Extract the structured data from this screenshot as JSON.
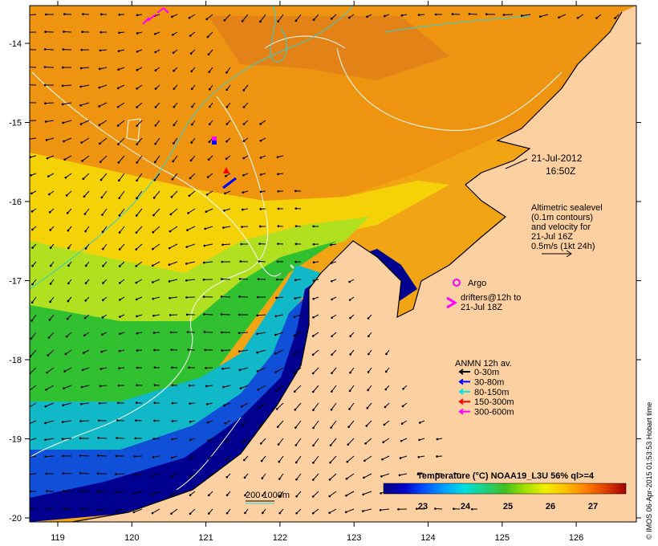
{
  "map": {
    "date_line1": "21-Jul-2012",
    "date_line2": "16:50Z",
    "altimetry": [
      "Altimetric sealevel",
      "(0.1m contours)",
      "and velocity for",
      "21-Jul 16Z",
      "0.5m/s (1kt 24h)"
    ],
    "argo_label": "Argo",
    "drifter_label_1": "drifters@12h to",
    "drifter_label_2": "21-Jul 18Z",
    "anmn": {
      "title": "ANMN 12h av.",
      "items": [
        {
          "label": "0-30m",
          "color": "#000000"
        },
        {
          "label": "30-80m",
          "color": "#0000ff"
        },
        {
          "label": "80-150m",
          "color": "#00e5e5"
        },
        {
          "label": "150-300m",
          "color": "#ff0000"
        },
        {
          "label": "300-600m",
          "color": "#ff00ff"
        }
      ]
    },
    "scale_label": "200  1000m",
    "colorbar": {
      "title": "Temperature (°C) NOAA19_L3U 56% ql>=4",
      "ticks": [
        "23",
        "24",
        "25",
        "26",
        "27"
      ],
      "colors": [
        "#000080",
        "#0000c8",
        "#0050ff",
        "#00a0ff",
        "#00e0e0",
        "#20d080",
        "#40c020",
        "#a0e000",
        "#f0f000",
        "#ffc000",
        "#ff8000",
        "#e04000",
        "#a00000"
      ]
    },
    "credit": "© IMOS 06-Apr-2015 01:53:53 Hobart time",
    "x_ticks": [
      "119",
      "120",
      "121",
      "122",
      "123",
      "124",
      "125",
      "126"
    ],
    "y_ticks": [
      "-14",
      "-15",
      "-16",
      "-17",
      "-18",
      "-19",
      "-20"
    ],
    "colors": {
      "land": "#fdd0a2",
      "warm": "#f29a12",
      "mid": "#f5d000",
      "cool": "#40c830",
      "cold": "#000090"
    }
  }
}
